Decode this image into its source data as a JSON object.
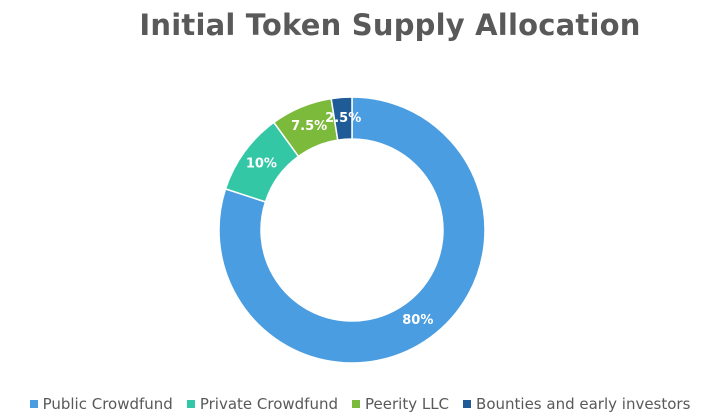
{
  "chart_data": {
    "type": "pie",
    "donut": true,
    "title": "Initial Token Supply Allocation",
    "legend_position": "bottom",
    "slices": [
      {
        "label": "Public Crowdfund",
        "value": 80,
        "display": "80%",
        "color": "#4a9de0"
      },
      {
        "label": "Private Crowdfund",
        "value": 10,
        "display": "10%",
        "color": "#33c7a6"
      },
      {
        "label": "Peerity LLC",
        "value": 7.5,
        "display": "7.5%",
        "color": "#7cba3b"
      },
      {
        "label": "Bounties and early investors",
        "value": 2.5,
        "display": "2.5%",
        "color": "#1f5c97"
      }
    ]
  }
}
